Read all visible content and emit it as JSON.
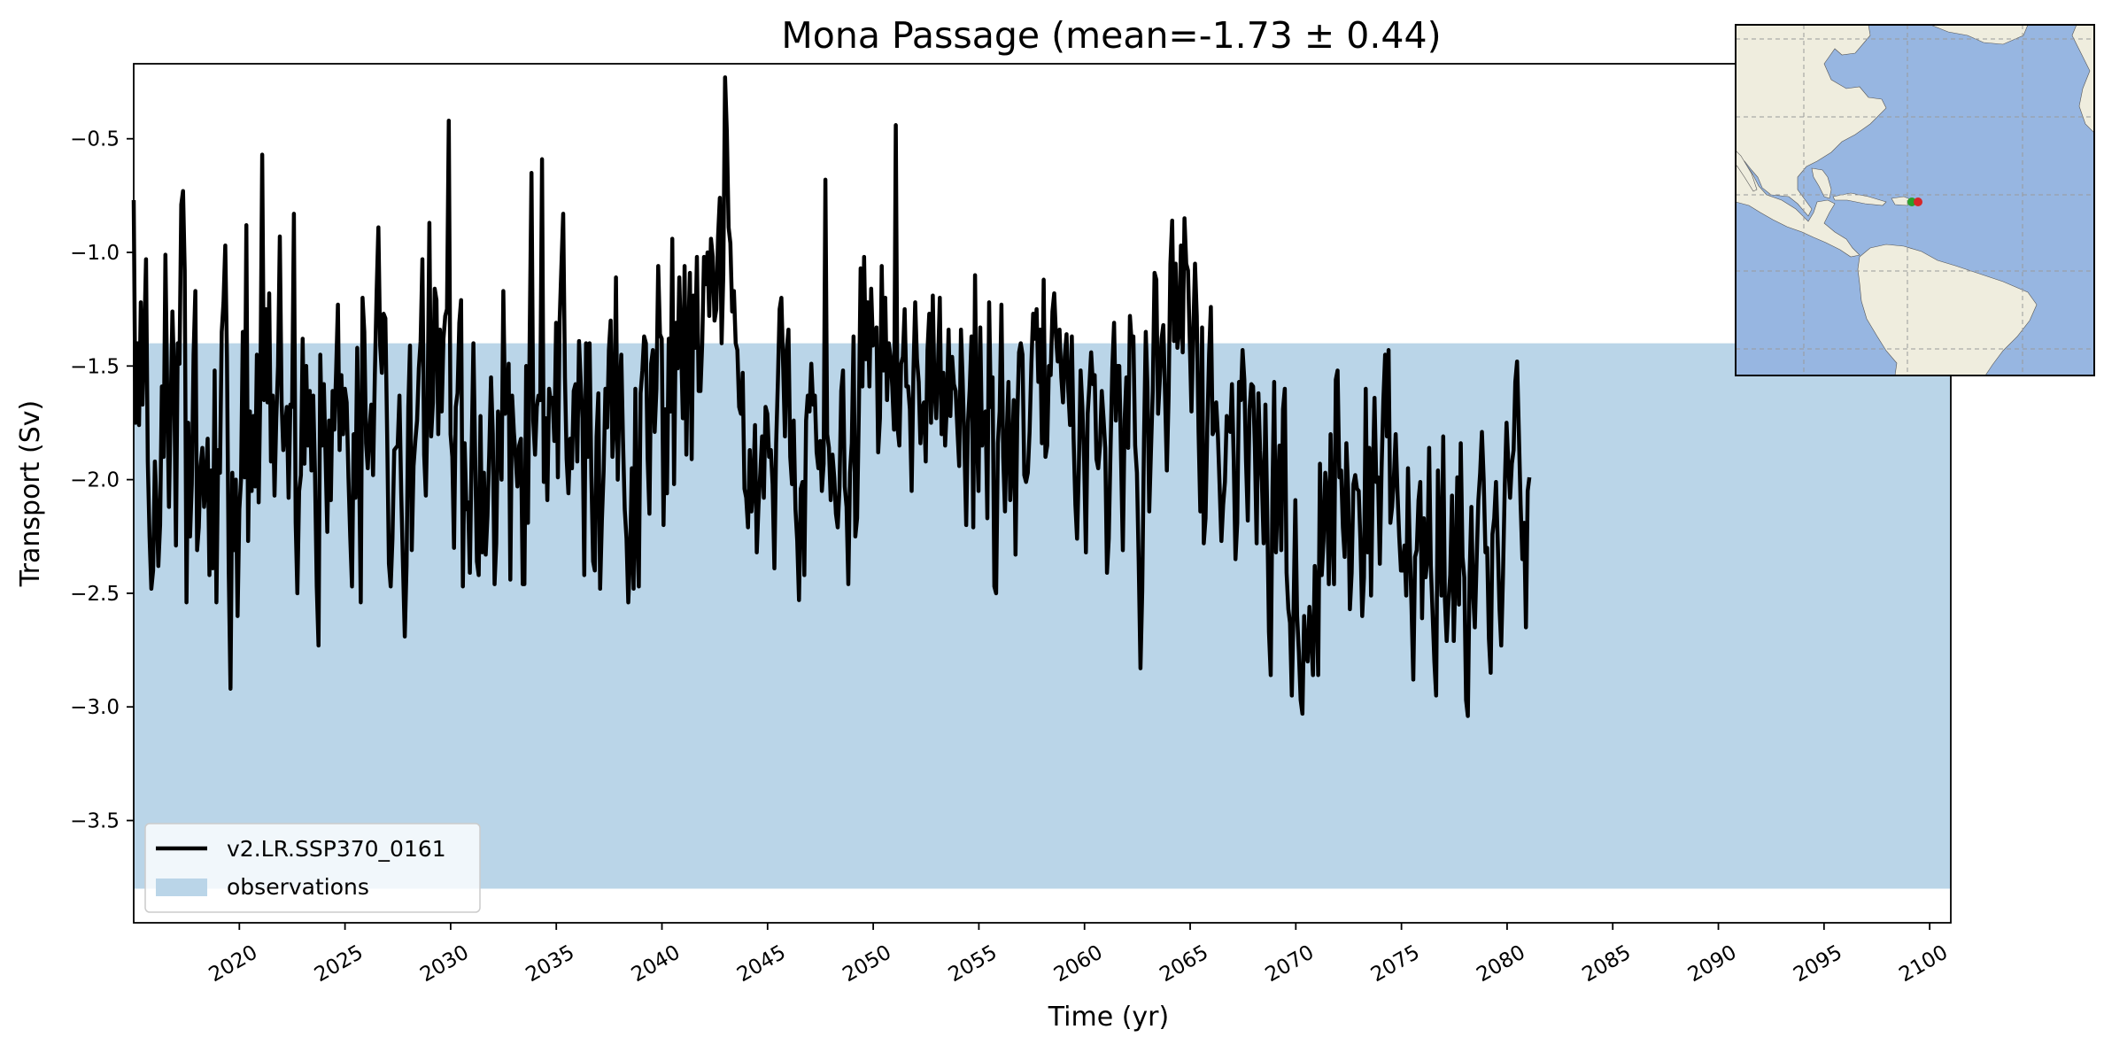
{
  "chart_data": {
    "type": "line",
    "title": "Mona Passage (mean=-1.73 ± 0.44)",
    "xlabel": "Time (yr)",
    "ylabel": "Transport (Sv)",
    "xlim": [
      2015,
      2101
    ],
    "ylim": [
      -3.95,
      -0.17
    ],
    "x_ticks": [
      "2020",
      "2025",
      "2030",
      "2035",
      "2040",
      "2045",
      "2050",
      "2055",
      "2060",
      "2065",
      "2070",
      "2075",
      "2080",
      "2085",
      "2090",
      "2095",
      "2100"
    ],
    "y_ticks": [
      "−3.5",
      "−3.0",
      "−2.5",
      "−2.0",
      "−1.5",
      "−1.0",
      "−0.5"
    ],
    "grid": false,
    "legend_position": "lower-left",
    "observations_band": {
      "name": "observations",
      "y_low": -3.8,
      "y_high": -1.4,
      "color": "#bad5e8"
    },
    "series": [
      {
        "name": "v2.LR.SSP370_0161",
        "color": "#000000",
        "x_start": 2015,
        "x_step": 0.0833,
        "values": [
          -0.77,
          -1.75,
          -1.4,
          -1.76,
          -1.22,
          -1.67,
          -1.38,
          -1.03,
          -1.92,
          -2.25,
          -2.48,
          -2.4,
          -1.92,
          -2.1,
          -2.38,
          -2.2,
          -1.59,
          -1.9,
          -1.01,
          -1.6,
          -2.12,
          -1.7,
          -1.26,
          -1.55,
          -2.29,
          -1.4,
          -1.49,
          -0.79,
          -0.73,
          -1.08,
          -2.54,
          -1.75,
          -2.25,
          -2.02,
          -1.45,
          -1.17,
          -2.31,
          -2.21,
          -1.94,
          -1.86,
          -2.12,
          -2.0,
          -1.82,
          -2.42,
          -1.96,
          -2.39,
          -1.52,
          -2.54,
          -1.87,
          -1.97,
          -1.35,
          -1.22,
          -0.97,
          -1.46,
          -2.4,
          -2.92,
          -1.97,
          -2.31,
          -2.0,
          -2.6,
          -2.13,
          -2.0,
          -1.35,
          -1.99,
          -0.88,
          -2.27,
          -1.7,
          -2.05,
          -1.72,
          -2.03,
          -1.45,
          -2.1,
          -1.57,
          -0.57,
          -1.65,
          -1.25,
          -1.66,
          -1.18,
          -1.92,
          -1.63,
          -2.07,
          -1.73,
          -1.5,
          -0.93,
          -1.66,
          -1.87,
          -1.77,
          -1.68,
          -2.08,
          -1.67,
          -1.68,
          -0.83,
          -2.19,
          -2.5,
          -2.05,
          -1.98,
          -1.38,
          -1.93,
          -1.5,
          -1.85,
          -1.61,
          -1.96,
          -1.63,
          -1.97,
          -2.47,
          -2.73,
          -1.45,
          -1.85,
          -1.58,
          -1.89,
          -2.23,
          -1.74,
          -2.09,
          -1.61,
          -1.78,
          -1.52,
          -1.23,
          -1.87,
          -1.54,
          -1.8,
          -1.6,
          -1.66,
          -1.99,
          -2.25,
          -2.47,
          -1.8,
          -2.08,
          -1.42,
          -1.89,
          -2.54,
          -1.2,
          -1.35,
          -1.84,
          -1.95,
          -1.77,
          -1.67,
          -1.98,
          -1.54,
          -1.18,
          -0.89,
          -1.41,
          -1.53,
          -1.27,
          -1.29,
          -1.8,
          -2.37,
          -2.47,
          -2.26,
          -1.87,
          -1.86,
          -1.85,
          -1.63,
          -2.06,
          -2.38,
          -2.69,
          -2.38,
          -1.68,
          -1.41,
          -2.31,
          -1.94,
          -1.83,
          -1.74,
          -1.51,
          -1.39,
          -1.03,
          -1.89,
          -2.07,
          -1.65,
          -0.87,
          -1.81,
          -1.66,
          -1.16,
          -1.21,
          -1.8,
          -1.34,
          -1.7,
          -1.38,
          -1.28,
          -1.25,
          -0.42,
          -1.8,
          -1.9,
          -2.3,
          -1.68,
          -1.62,
          -1.31,
          -1.21,
          -2.47,
          -1.84,
          -2.13,
          -2.1,
          -2.41,
          -1.88,
          -1.4,
          -1.9,
          -2.36,
          -2.42,
          -1.72,
          -2.32,
          -1.97,
          -2.33,
          -2.16,
          -1.88,
          -1.55,
          -1.8,
          -2.46,
          -2.28,
          -1.7,
          -1.81,
          -2.0,
          -1.17,
          -1.71,
          -1.67,
          -1.49,
          -2.44,
          -1.63,
          -1.79,
          -1.9,
          -2.03,
          -1.85,
          -1.82,
          -2.46,
          -2.46,
          -1.5,
          -2.19,
          -1.36,
          -0.65,
          -1.74,
          -1.89,
          -1.68,
          -1.63,
          -1.65,
          -0.59,
          -2.01,
          -1.73,
          -2.09,
          -1.6,
          -1.66,
          -1.64,
          -1.83,
          -1.31,
          -1.99,
          -1.3,
          -1.06,
          -0.83,
          -1.55,
          -1.91,
          -2.06,
          -1.82,
          -1.95,
          -1.61,
          -1.58,
          -1.92,
          -1.39,
          -1.57,
          -1.73,
          -2.42,
          -1.4,
          -1.9,
          -1.4,
          -1.98,
          -2.36,
          -2.4,
          -1.81,
          -1.62,
          -2.48,
          -2.18,
          -1.96,
          -1.6,
          -1.77,
          -1.43,
          -1.3,
          -1.9,
          -1.76,
          -1.11,
          -2.0,
          -1.62,
          -1.45,
          -1.82,
          -2.13,
          -2.26,
          -2.54,
          -2.34,
          -1.95,
          -2.48,
          -1.6,
          -2.24,
          -2.47,
          -1.62,
          -1.52,
          -1.37,
          -1.4,
          -1.91,
          -2.15,
          -1.49,
          -1.43,
          -1.79,
          -1.6,
          -1.06,
          -1.36,
          -1.38,
          -2.2,
          -1.69,
          -2.06,
          -1.38,
          -1.7,
          -0.94,
          -2.02,
          -1.31,
          -1.51,
          -1.11,
          -1.4,
          -1.73,
          -1.06,
          -1.89,
          -1.38,
          -1.09,
          -1.91,
          -1.19,
          -1.42,
          -1.02,
          -1.61,
          -1.61,
          -1.4,
          -1.02,
          -1.14,
          -1.0,
          -1.28,
          -0.94,
          -1.02,
          -1.3,
          -1.25,
          -0.93,
          -0.76,
          -1.4,
          -1.1,
          -0.23,
          -0.47,
          -0.89,
          -0.96,
          -1.26,
          -1.17,
          -1.4,
          -1.43,
          -1.68,
          -1.71,
          -1.53,
          -2.04,
          -2.08,
          -2.21,
          -1.87,
          -2.14,
          -2.03,
          -1.76,
          -2.32,
          -2.11,
          -1.97,
          -1.81,
          -2.08,
          -1.68,
          -1.71,
          -1.9,
          -1.87,
          -2.02,
          -2.39,
          -1.84,
          -1.56,
          -1.25,
          -1.2,
          -1.5,
          -1.81,
          -1.43,
          -1.34,
          -1.9,
          -2.02,
          -1.74,
          -2.13,
          -2.27,
          -2.53,
          -2.04,
          -2.01,
          -2.42,
          -1.74,
          -1.63,
          -1.7,
          -1.49,
          -1.67,
          -1.63,
          -1.88,
          -1.95,
          -1.83,
          -2.05,
          -1.93,
          -0.68,
          -1.8,
          -1.86,
          -2.09,
          -1.89,
          -1.99,
          -2.15,
          -2.21,
          -2.04,
          -1.61,
          -1.52,
          -2.03,
          -2.12,
          -2.46,
          -1.97,
          -1.84,
          -1.37,
          -2.25,
          -2.17,
          -1.7,
          -1.07,
          -1.59,
          -1.02,
          -1.47,
          -1.22,
          -1.59,
          -1.16,
          -1.41,
          -1.39,
          -1.33,
          -1.88,
          -1.73,
          -1.06,
          -1.52,
          -1.2,
          -1.65,
          -1.4,
          -1.46,
          -1.59,
          -1.78,
          -0.44,
          -1.77,
          -1.85,
          -1.49,
          -1.46,
          -1.25,
          -1.59,
          -1.59,
          -1.69,
          -2.05,
          -1.53,
          -1.22,
          -1.47,
          -1.57,
          -1.84,
          -1.69,
          -1.66,
          -1.92,
          -1.43,
          -1.27,
          -1.75,
          -1.19,
          -1.6,
          -1.73,
          -1.49,
          -1.2,
          -1.8,
          -1.53,
          -1.85,
          -1.67,
          -1.34,
          -1.72,
          -1.46,
          -1.58,
          -1.61,
          -1.78,
          -1.94,
          -1.34,
          -1.56,
          -1.85,
          -2.2,
          -1.75,
          -1.6,
          -1.37,
          -2.21,
          -1.1,
          -1.77,
          -2.05,
          -1.33,
          -1.85,
          -1.72,
          -1.7,
          -2.17,
          -1.22,
          -1.68,
          -1.55,
          -2.47,
          -2.5,
          -1.84,
          -1.7,
          -1.23,
          -1.9,
          -2.14,
          -1.81,
          -1.57,
          -2.09,
          -1.91,
          -1.65,
          -2.33,
          -1.73,
          -1.44,
          -1.4,
          -1.45,
          -1.98,
          -2.01,
          -1.97,
          -1.79,
          -1.49,
          -1.27,
          -1.38,
          -1.25,
          -1.57,
          -1.34,
          -1.84,
          -1.12,
          -1.9,
          -1.85,
          -1.5,
          -1.54,
          -1.26,
          -1.18,
          -1.37,
          -1.48,
          -1.34,
          -1.55,
          -1.66,
          -1.46,
          -1.36,
          -1.61,
          -1.76,
          -1.37,
          -1.82,
          -2.11,
          -2.26,
          -1.95,
          -1.52,
          -1.68,
          -1.92,
          -2.32,
          -1.71,
          -1.58,
          -1.44,
          -1.58,
          -1.54,
          -1.91,
          -1.95,
          -1.85,
          -1.61,
          -1.73,
          -1.86,
          -2.41,
          -2.26,
          -1.87,
          -1.51,
          -1.31,
          -1.74,
          -1.5,
          -1.5,
          -1.91,
          -2.31,
          -1.74,
          -1.55,
          -1.86,
          -1.28,
          -1.4,
          -1.37,
          -1.85,
          -1.97,
          -2.36,
          -2.83,
          -2.49,
          -1.82,
          -1.35,
          -1.59,
          -2.14,
          -1.87,
          -1.61,
          -1.09,
          -1.12,
          -1.71,
          -1.56,
          -1.38,
          -1.32,
          -1.63,
          -1.96,
          -1.63,
          -1.05,
          -0.86,
          -1.39,
          -1.05,
          -1.42,
          -1.35,
          -0.97,
          -1.44,
          -0.85,
          -1.05,
          -1.08,
          -1.38,
          -1.7,
          -1.36,
          -1.05,
          -1.28,
          -1.79,
          -2.14,
          -1.33,
          -2.28,
          -2.17,
          -1.77,
          -1.45,
          -1.24,
          -1.8,
          -1.78,
          -1.66,
          -1.8,
          -2.03,
          -2.27,
          -2.11,
          -2.01,
          -1.72,
          -1.77,
          -1.79,
          -1.58,
          -1.91,
          -2.35,
          -2.19,
          -1.57,
          -1.65,
          -1.43,
          -1.56,
          -1.92,
          -2.18,
          -1.69,
          -1.58,
          -1.59,
          -1.86,
          -2.28,
          -1.62,
          -1.87,
          -2.01,
          -2.28,
          -1.67,
          -2.13,
          -2.67,
          -2.86,
          -2.04,
          -1.57,
          -2.32,
          -2.08,
          -1.85,
          -2.31,
          -1.69,
          -1.6,
          -2.41,
          -2.57,
          -2.63,
          -2.95,
          -2.57,
          -2.09,
          -2.6,
          -2.76,
          -2.97,
          -3.03,
          -2.6,
          -2.77,
          -2.8,
          -2.56,
          -2.69,
          -2.86,
          -2.38,
          -2.5,
          -2.86,
          -1.93,
          -2.42,
          -2.27,
          -1.97,
          -2.06,
          -2.46,
          -1.8,
          -2.21,
          -2.46,
          -1.56,
          -1.52,
          -1.99,
          -1.96,
          -2.21,
          -2.34,
          -1.84,
          -2.04,
          -2.57,
          -2.41,
          -2.02,
          -1.98,
          -2.04,
          -2.05,
          -2.27,
          -2.6,
          -2.43,
          -1.6,
          -2.32,
          -1.86,
          -2.51,
          -1.98,
          -1.64,
          -2.01,
          -1.99,
          -2.37,
          -1.95,
          -1.65,
          -1.45,
          -1.81,
          -1.43,
          -2.19,
          -2.12,
          -1.99,
          -1.8,
          -2.05,
          -2.25,
          -2.4,
          -2.4,
          -2.29,
          -2.51,
          -1.95,
          -2.29,
          -2.56,
          -2.88,
          -2.34,
          -2.31,
          -2.09,
          -2.01,
          -2.61,
          -2.17,
          -2.43,
          -2.35,
          -1.86,
          -2.38,
          -2.59,
          -2.8,
          -2.95,
          -1.96,
          -2.28,
          -2.51,
          -1.81,
          -2.53,
          -2.71,
          -2.54,
          -2.42,
          -2.07,
          -2.71,
          -2.41,
          -1.99,
          -2.55,
          -1.84,
          -2.34,
          -2.43,
          -2.97,
          -3.04,
          -2.42,
          -2.12,
          -2.5,
          -2.65,
          -2.36,
          -2.09,
          -1.97,
          -1.79,
          -2.0,
          -2.32,
          -2.3,
          -2.7,
          -2.85,
          -2.24,
          -2.17,
          -2.01,
          -2.28,
          -2.57,
          -2.73,
          -2.42,
          -2.03,
          -1.75,
          -1.93,
          -2.08,
          -1.93,
          -1.87,
          -1.57,
          -1.48,
          -1.79,
          -2.11,
          -2.35,
          -2.19,
          -2.65,
          -2.05,
          -1.99
        ]
      }
    ]
  },
  "legend": {
    "line_label": "v2.LR.SSP370_0161",
    "band_label": "observations"
  },
  "map_inset": {
    "land_color": "#efedde",
    "ocean_color": "#97b6e1",
    "markers": [
      "#2aa02a",
      "#d62728"
    ]
  }
}
